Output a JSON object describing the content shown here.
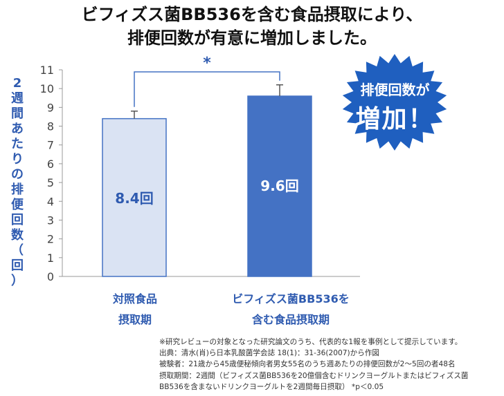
{
  "title_line1": "ビフィズス菌BB536を含む食品摂取により、",
  "title_line2": "排便回数が有意に増加しました。",
  "badge": {
    "line1": "排便回数が",
    "line2": "増加！",
    "color": "#1f5fbf"
  },
  "chart_data": {
    "type": "bar",
    "ylabel": "2週間あたりの排便回数（回）",
    "ylim": [
      0,
      11
    ],
    "yticks": [
      0,
      1,
      2,
      3,
      4,
      5,
      6,
      7,
      8,
      9,
      10,
      11
    ],
    "categories": [
      [
        "対照食品",
        "摂取期"
      ],
      [
        "ビフィズス菌BB536を",
        "含む食品摂取期"
      ]
    ],
    "values": [
      8.4,
      9.6
    ],
    "error_top": [
      8.8,
      10.2
    ],
    "data_labels": [
      "8.4回",
      "9.6回"
    ],
    "colors": [
      "#dae3f3",
      "#4472c4"
    ],
    "significance": "*",
    "grid": false
  },
  "notes": [
    "※研究レビューの対象となった研究論文のうち、代表的な1報を事例として提示しています。",
    "出典：清水(肖)ら日本乳酸菌学会誌 18(1)：31-36(2007)から作図",
    "被験者：21歳から45歳便秘傾向者男女55名のうち週あたりの排便回数が2～5回の者48名",
    "摂取期間：2週間（ビフィズス菌BB536を20億個含むドリンクヨーグルトまたはビフィズス菌",
    "BB536を含まないドリンクヨーグルトを2週間毎日摂取） *p＜0.05"
  ]
}
